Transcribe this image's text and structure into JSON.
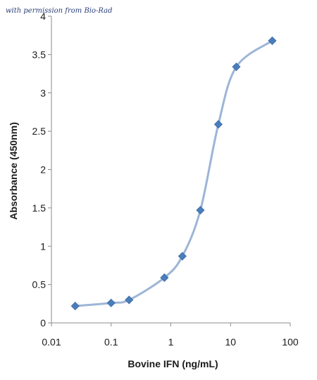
{
  "watermark": "with permission from Bio-Rad",
  "chart_data": {
    "type": "scatter",
    "title": "",
    "xlabel": "Bovine IFN (ng/mL)",
    "ylabel": "Absorbance (450nm)",
    "xscale": "log",
    "xlim": [
      0.01,
      100
    ],
    "ylim": [
      0,
      4
    ],
    "x_ticks": [
      "0.01",
      "0.1",
      "1",
      "10",
      "100"
    ],
    "y_ticks": [
      "0",
      "0.5",
      "1",
      "1.5",
      "2",
      "2.5",
      "3",
      "3.5",
      "4"
    ],
    "grid": false,
    "legend": "none",
    "series": [
      {
        "x": [
          0.025,
          0.1,
          0.2,
          0.78,
          1.56,
          3.125,
          6.25,
          12.5,
          50
        ],
        "y": [
          0.22,
          0.26,
          0.3,
          0.59,
          0.87,
          1.47,
          2.59,
          3.34,
          3.68
        ],
        "marker": "diamond",
        "line": "smooth",
        "line_color": "#9db5d6",
        "marker_color": "#4a7ebb"
      }
    ]
  }
}
